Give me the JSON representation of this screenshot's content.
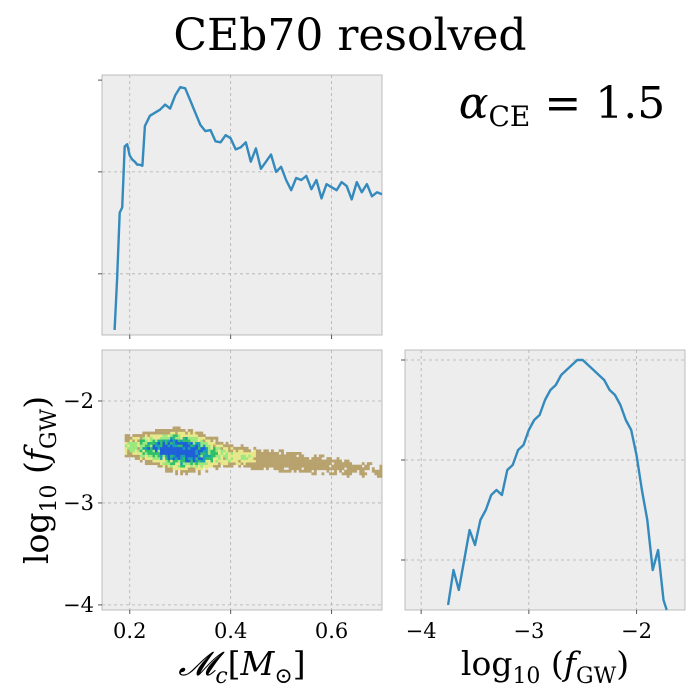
{
  "title": "CEb70 resolved",
  "annotation": "αCE = 1.5",
  "colors": {
    "line": "#348abd",
    "panel_background": "#ededed",
    "heatmap_scale": [
      "#8c6d4f",
      "#b8a26d",
      "#e8e88a",
      "#9be87f",
      "#2fbf6a",
      "#1aa0b4",
      "#1f5fd8"
    ]
  },
  "chart_data": [
    {
      "panel": "top-left",
      "type": "line",
      "description_axis": "Mc",
      "xlim": [
        0.145,
        0.7
      ],
      "ylim_log10": [
        -1.6,
        0.95
      ],
      "yscale": "log",
      "grid": true,
      "x": [
        0.17,
        0.175,
        0.18,
        0.185,
        0.19,
        0.195,
        0.2,
        0.205,
        0.21,
        0.215,
        0.22,
        0.225,
        0.23,
        0.24,
        0.25,
        0.26,
        0.27,
        0.28,
        0.29,
        0.3,
        0.31,
        0.32,
        0.33,
        0.34,
        0.35,
        0.36,
        0.37,
        0.38,
        0.39,
        0.4,
        0.41,
        0.42,
        0.43,
        0.44,
        0.45,
        0.46,
        0.47,
        0.48,
        0.49,
        0.5,
        0.51,
        0.52,
        0.53,
        0.54,
        0.55,
        0.56,
        0.57,
        0.58,
        0.59,
        0.6,
        0.61,
        0.62,
        0.63,
        0.64,
        0.65,
        0.66,
        0.67,
        0.68,
        0.69,
        0.7
      ],
      "y_log10": [
        -1.55,
        -1.05,
        -0.4,
        -0.35,
        0.25,
        0.27,
        0.16,
        0.12,
        0.1,
        0.07,
        0.07,
        0.06,
        0.45,
        0.55,
        0.58,
        0.61,
        0.66,
        0.62,
        0.75,
        0.83,
        0.82,
        0.7,
        0.58,
        0.46,
        0.4,
        0.41,
        0.3,
        0.29,
        0.36,
        0.33,
        0.22,
        0.24,
        0.29,
        0.1,
        0.23,
        0.03,
        0.1,
        0.17,
        0.0,
        0.05,
        -0.08,
        -0.18,
        -0.06,
        -0.08,
        -0.04,
        -0.17,
        -0.08,
        -0.26,
        -0.12,
        -0.15,
        -0.18,
        -0.1,
        -0.14,
        -0.27,
        -0.1,
        -0.2,
        -0.12,
        -0.24,
        -0.2,
        -0.22
      ],
      "x_ticks": [
        0.2,
        0.4,
        0.6
      ]
    },
    {
      "panel": "bottom-left",
      "type": "heatmap",
      "xlim": [
        0.145,
        0.7
      ],
      "ylim": [
        -4.05,
        -1.5
      ],
      "x_ticks": [
        "0.2",
        "0.4",
        "0.6"
      ],
      "y_ticks": [
        "−2",
        "−3",
        "−4"
      ],
      "x_tick_values": [
        0.2,
        0.4,
        0.6
      ],
      "y_tick_values": [
        -2,
        -3,
        -4
      ],
      "xlabel": "𝓜c[M⊙]",
      "ylabel": "log10 (fGW)",
      "grid": true,
      "density_center": [
        0.3,
        -2.5
      ]
    },
    {
      "panel": "bottom-right",
      "type": "line",
      "xlim": [
        -4.15,
        -1.55
      ],
      "ylim_log10": [
        -2.5,
        0.1
      ],
      "yscale": "log",
      "grid": true,
      "x": [
        -3.75,
        -3.7,
        -3.65,
        -3.6,
        -3.55,
        -3.5,
        -3.45,
        -3.4,
        -3.35,
        -3.3,
        -3.25,
        -3.2,
        -3.15,
        -3.1,
        -3.05,
        -3.0,
        -2.95,
        -2.9,
        -2.85,
        -2.8,
        -2.75,
        -2.7,
        -2.65,
        -2.6,
        -2.55,
        -2.5,
        -2.45,
        -2.4,
        -2.35,
        -2.3,
        -2.25,
        -2.2,
        -2.15,
        -2.1,
        -2.05,
        -2.0,
        -1.95,
        -1.9,
        -1.85,
        -1.8,
        -1.75,
        -1.72
      ],
      "y_log10": [
        -2.45,
        -2.1,
        -2.3,
        -2.0,
        -1.7,
        -1.85,
        -1.6,
        -1.5,
        -1.35,
        -1.3,
        -1.35,
        -1.1,
        -1.05,
        -0.9,
        -0.85,
        -0.7,
        -0.6,
        -0.55,
        -0.4,
        -0.3,
        -0.25,
        -0.15,
        -0.1,
        -0.05,
        0.0,
        0.0,
        -0.05,
        -0.1,
        -0.15,
        -0.2,
        -0.3,
        -0.35,
        -0.45,
        -0.6,
        -0.7,
        -0.95,
        -1.3,
        -1.6,
        -2.1,
        -1.9,
        -2.4,
        -2.5
      ],
      "x_ticks": [
        "−4",
        "−3",
        "−2"
      ],
      "x_tick_values": [
        -4,
        -3,
        -2
      ],
      "xlabel": "log10 (fGW)"
    }
  ]
}
